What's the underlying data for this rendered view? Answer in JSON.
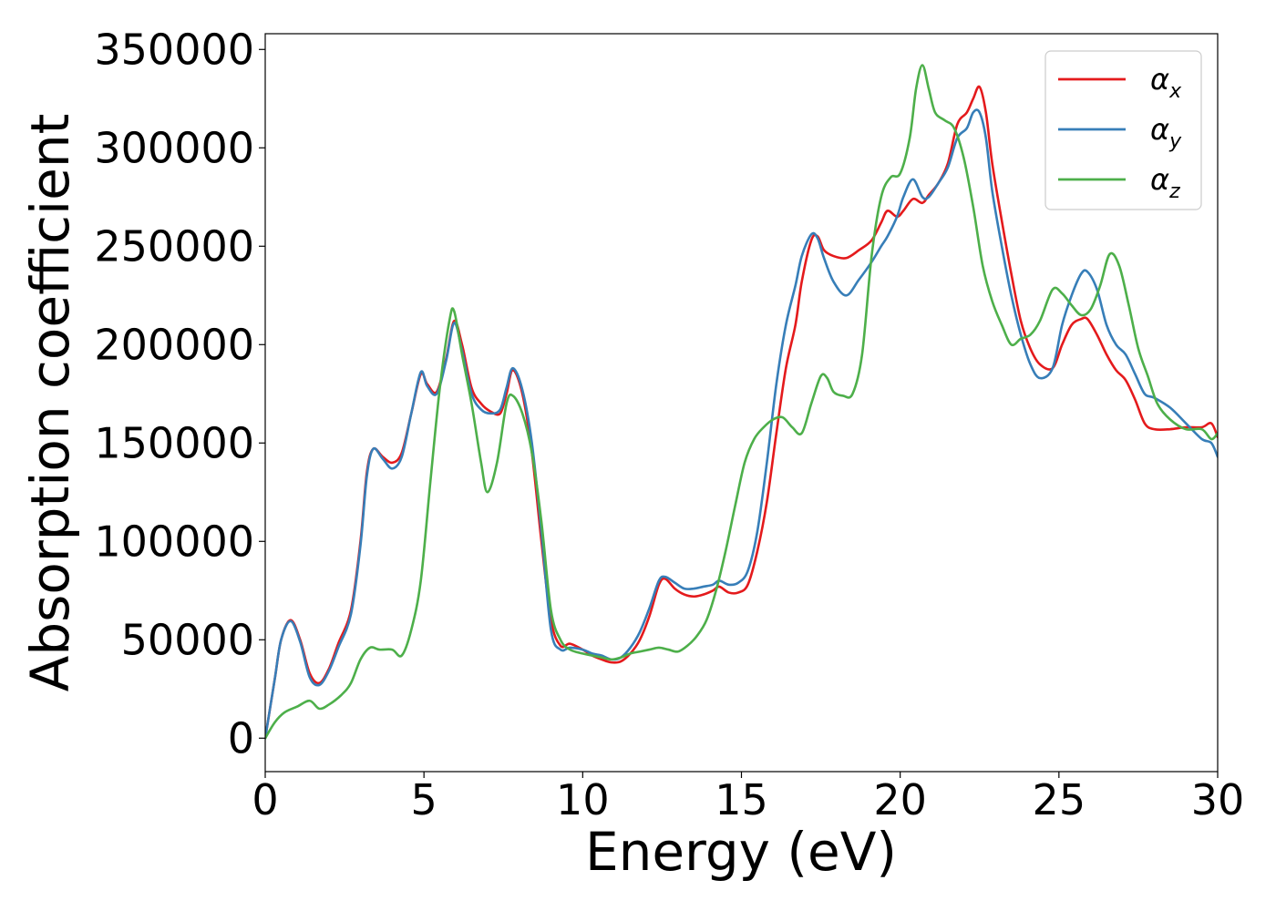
{
  "chart_data": {
    "type": "line",
    "xlabel": "Energy (eV)",
    "ylabel": "Absorption coefficient",
    "xlim": [
      0,
      30
    ],
    "ylim": [
      -17000,
      358000
    ],
    "x_ticks": [
      0,
      5,
      10,
      15,
      20,
      25,
      30
    ],
    "y_ticks": [
      0,
      50000,
      100000,
      150000,
      200000,
      250000,
      300000,
      350000
    ],
    "grid": false,
    "legend_position": "top-right",
    "series": [
      {
        "name": "αx",
        "legend_main": "α",
        "legend_sub": "x",
        "color": "#e41a1c",
        "points": [
          [
            0,
            0
          ],
          [
            0.3,
            30000
          ],
          [
            0.5,
            50000
          ],
          [
            0.8,
            60000
          ],
          [
            1.1,
            50000
          ],
          [
            1.4,
            33000
          ],
          [
            1.7,
            28000
          ],
          [
            2.0,
            35000
          ],
          [
            2.3,
            48000
          ],
          [
            2.7,
            65000
          ],
          [
            3.0,
            100000
          ],
          [
            3.2,
            135000
          ],
          [
            3.4,
            147000
          ],
          [
            3.7,
            143000
          ],
          [
            4.0,
            140000
          ],
          [
            4.3,
            145000
          ],
          [
            4.6,
            165000
          ],
          [
            4.9,
            185000
          ],
          [
            5.1,
            180000
          ],
          [
            5.4,
            176000
          ],
          [
            5.7,
            193000
          ],
          [
            5.95,
            212000
          ],
          [
            6.2,
            200000
          ],
          [
            6.5,
            178000
          ],
          [
            6.8,
            170000
          ],
          [
            7.1,
            166000
          ],
          [
            7.4,
            165000
          ],
          [
            7.6,
            175000
          ],
          [
            7.8,
            187000
          ],
          [
            8.1,
            175000
          ],
          [
            8.4,
            145000
          ],
          [
            8.7,
            100000
          ],
          [
            9.0,
            60000
          ],
          [
            9.3,
            47000
          ],
          [
            9.6,
            48000
          ],
          [
            10.0,
            45000
          ],
          [
            10.3,
            42000
          ],
          [
            10.6,
            40000
          ],
          [
            10.9,
            38500
          ],
          [
            11.2,
            39000
          ],
          [
            11.5,
            43000
          ],
          [
            11.8,
            50000
          ],
          [
            12.1,
            62000
          ],
          [
            12.4,
            78000
          ],
          [
            12.6,
            81000
          ],
          [
            12.9,
            76000
          ],
          [
            13.2,
            73000
          ],
          [
            13.5,
            72000
          ],
          [
            13.8,
            73000
          ],
          [
            14.1,
            75000
          ],
          [
            14.3,
            77000
          ],
          [
            14.6,
            74000
          ],
          [
            14.9,
            74000
          ],
          [
            15.2,
            78000
          ],
          [
            15.5,
            95000
          ],
          [
            15.8,
            120000
          ],
          [
            16.1,
            155000
          ],
          [
            16.4,
            188000
          ],
          [
            16.7,
            210000
          ],
          [
            16.9,
            232000
          ],
          [
            17.2,
            253000
          ],
          [
            17.4,
            255000
          ],
          [
            17.6,
            248000
          ],
          [
            17.9,
            245000
          ],
          [
            18.3,
            244000
          ],
          [
            18.7,
            248000
          ],
          [
            19.1,
            253000
          ],
          [
            19.4,
            262000
          ],
          [
            19.6,
            268000
          ],
          [
            19.9,
            265000
          ],
          [
            20.1,
            268000
          ],
          [
            20.4,
            274000
          ],
          [
            20.7,
            272000
          ],
          [
            20.9,
            276000
          ],
          [
            21.2,
            282000
          ],
          [
            21.5,
            292000
          ],
          [
            21.8,
            312000
          ],
          [
            22.1,
            318000
          ],
          [
            22.3,
            325000
          ],
          [
            22.5,
            331000
          ],
          [
            22.7,
            318000
          ],
          [
            22.9,
            292000
          ],
          [
            23.2,
            263000
          ],
          [
            23.5,
            236000
          ],
          [
            23.8,
            212000
          ],
          [
            24.1,
            198000
          ],
          [
            24.4,
            190000
          ],
          [
            24.8,
            188000
          ],
          [
            25.1,
            200000
          ],
          [
            25.4,
            210000
          ],
          [
            25.7,
            213000
          ],
          [
            25.9,
            213000
          ],
          [
            26.2,
            205000
          ],
          [
            26.5,
            195000
          ],
          [
            26.8,
            187000
          ],
          [
            27.1,
            182000
          ],
          [
            27.4,
            172000
          ],
          [
            27.7,
            160000
          ],
          [
            28.0,
            157000
          ],
          [
            28.5,
            157000
          ],
          [
            29.0,
            158000
          ],
          [
            29.5,
            158000
          ],
          [
            29.8,
            160000
          ],
          [
            30.0,
            153000
          ]
        ]
      },
      {
        "name": "αy",
        "legend_main": "α",
        "legend_sub": "y",
        "color": "#377eb8",
        "points": [
          [
            0,
            0
          ],
          [
            0.3,
            30000
          ],
          [
            0.5,
            50000
          ],
          [
            0.8,
            59500
          ],
          [
            1.1,
            49000
          ],
          [
            1.4,
            31000
          ],
          [
            1.7,
            27000
          ],
          [
            2.0,
            34000
          ],
          [
            2.3,
            46000
          ],
          [
            2.7,
            63000
          ],
          [
            3.0,
            98000
          ],
          [
            3.2,
            133000
          ],
          [
            3.4,
            147000
          ],
          [
            3.7,
            142000
          ],
          [
            4.0,
            137000
          ],
          [
            4.3,
            143000
          ],
          [
            4.6,
            165000
          ],
          [
            4.9,
            186000
          ],
          [
            5.1,
            179000
          ],
          [
            5.4,
            175000
          ],
          [
            5.7,
            192000
          ],
          [
            5.95,
            211000
          ],
          [
            6.2,
            197000
          ],
          [
            6.5,
            175000
          ],
          [
            6.8,
            167000
          ],
          [
            7.1,
            165000
          ],
          [
            7.4,
            167000
          ],
          [
            7.6,
            178000
          ],
          [
            7.8,
            188000
          ],
          [
            8.1,
            177000
          ],
          [
            8.4,
            150000
          ],
          [
            8.7,
            105000
          ],
          [
            9.0,
            55000
          ],
          [
            9.3,
            45000
          ],
          [
            9.6,
            46000
          ],
          [
            10.0,
            45000
          ],
          [
            10.3,
            43000
          ],
          [
            10.6,
            42000
          ],
          [
            10.9,
            40000
          ],
          [
            11.2,
            41000
          ],
          [
            11.5,
            46000
          ],
          [
            11.8,
            54000
          ],
          [
            12.1,
            66000
          ],
          [
            12.4,
            80000
          ],
          [
            12.6,
            82000
          ],
          [
            12.9,
            79000
          ],
          [
            13.2,
            76000
          ],
          [
            13.5,
            76000
          ],
          [
            13.8,
            77000
          ],
          [
            14.1,
            78000
          ],
          [
            14.3,
            80000
          ],
          [
            14.6,
            78000
          ],
          [
            14.9,
            79000
          ],
          [
            15.2,
            85000
          ],
          [
            15.5,
            105000
          ],
          [
            15.8,
            140000
          ],
          [
            16.1,
            180000
          ],
          [
            16.4,
            210000
          ],
          [
            16.7,
            230000
          ],
          [
            16.9,
            245000
          ],
          [
            17.2,
            256000
          ],
          [
            17.4,
            254000
          ],
          [
            17.6,
            244000
          ],
          [
            17.9,
            232000
          ],
          [
            18.3,
            225000
          ],
          [
            18.7,
            233000
          ],
          [
            19.1,
            242000
          ],
          [
            19.4,
            250000
          ],
          [
            19.6,
            255000
          ],
          [
            19.9,
            265000
          ],
          [
            20.1,
            275000
          ],
          [
            20.4,
            284000
          ],
          [
            20.7,
            275000
          ],
          [
            20.9,
            275000
          ],
          [
            21.2,
            282000
          ],
          [
            21.5,
            290000
          ],
          [
            21.8,
            305000
          ],
          [
            22.1,
            310000
          ],
          [
            22.3,
            318000
          ],
          [
            22.5,
            318000
          ],
          [
            22.7,
            305000
          ],
          [
            22.9,
            278000
          ],
          [
            23.2,
            250000
          ],
          [
            23.5,
            225000
          ],
          [
            23.8,
            205000
          ],
          [
            24.1,
            190000
          ],
          [
            24.4,
            183000
          ],
          [
            24.8,
            188000
          ],
          [
            25.1,
            210000
          ],
          [
            25.4,
            225000
          ],
          [
            25.7,
            236000
          ],
          [
            25.9,
            237000
          ],
          [
            26.2,
            228000
          ],
          [
            26.5,
            210000
          ],
          [
            26.8,
            200000
          ],
          [
            27.1,
            195000
          ],
          [
            27.4,
            185000
          ],
          [
            27.7,
            175000
          ],
          [
            28.0,
            173000
          ],
          [
            28.5,
            168000
          ],
          [
            29.0,
            160000
          ],
          [
            29.5,
            152000
          ],
          [
            29.8,
            150000
          ],
          [
            30.0,
            143000
          ]
        ]
      },
      {
        "name": "αz",
        "legend_main": "α",
        "legend_sub": "z",
        "color": "#4daf4a",
        "points": [
          [
            0,
            0
          ],
          [
            0.3,
            8000
          ],
          [
            0.6,
            13000
          ],
          [
            1.0,
            16000
          ],
          [
            1.4,
            19000
          ],
          [
            1.7,
            15000
          ],
          [
            2.0,
            17000
          ],
          [
            2.4,
            22000
          ],
          [
            2.7,
            28000
          ],
          [
            3.0,
            40000
          ],
          [
            3.3,
            46000
          ],
          [
            3.6,
            45000
          ],
          [
            4.0,
            45000
          ],
          [
            4.3,
            42000
          ],
          [
            4.6,
            55000
          ],
          [
            4.9,
            80000
          ],
          [
            5.2,
            130000
          ],
          [
            5.5,
            178000
          ],
          [
            5.8,
            212000
          ],
          [
            5.95,
            217000
          ],
          [
            6.2,
            195000
          ],
          [
            6.5,
            170000
          ],
          [
            6.8,
            140000
          ],
          [
            7.0,
            125000
          ],
          [
            7.3,
            140000
          ],
          [
            7.6,
            170000
          ],
          [
            7.8,
            174000
          ],
          [
            8.1,
            165000
          ],
          [
            8.4,
            145000
          ],
          [
            8.7,
            110000
          ],
          [
            9.0,
            65000
          ],
          [
            9.3,
            50000
          ],
          [
            9.6,
            45000
          ],
          [
            10.0,
            43000
          ],
          [
            10.3,
            42000
          ],
          [
            10.6,
            41000
          ],
          [
            10.9,
            40000
          ],
          [
            11.2,
            41000
          ],
          [
            11.5,
            43000
          ],
          [
            11.8,
            44000
          ],
          [
            12.1,
            45000
          ],
          [
            12.4,
            46000
          ],
          [
            12.7,
            45000
          ],
          [
            13.0,
            44000
          ],
          [
            13.3,
            47000
          ],
          [
            13.6,
            52000
          ],
          [
            13.9,
            60000
          ],
          [
            14.2,
            75000
          ],
          [
            14.5,
            95000
          ],
          [
            14.8,
            118000
          ],
          [
            15.1,
            140000
          ],
          [
            15.4,
            152000
          ],
          [
            15.7,
            158000
          ],
          [
            16.0,
            162000
          ],
          [
            16.3,
            163000
          ],
          [
            16.6,
            158000
          ],
          [
            16.9,
            155000
          ],
          [
            17.2,
            170000
          ],
          [
            17.5,
            184000
          ],
          [
            17.7,
            183000
          ],
          [
            17.9,
            176000
          ],
          [
            18.2,
            174000
          ],
          [
            18.5,
            175000
          ],
          [
            18.8,
            195000
          ],
          [
            19.1,
            245000
          ],
          [
            19.4,
            275000
          ],
          [
            19.7,
            285000
          ],
          [
            20.0,
            287000
          ],
          [
            20.3,
            305000
          ],
          [
            20.5,
            330000
          ],
          [
            20.7,
            342000
          ],
          [
            20.9,
            330000
          ],
          [
            21.1,
            318000
          ],
          [
            21.4,
            314000
          ],
          [
            21.7,
            310000
          ],
          [
            22.0,
            295000
          ],
          [
            22.3,
            270000
          ],
          [
            22.6,
            240000
          ],
          [
            22.9,
            222000
          ],
          [
            23.2,
            210000
          ],
          [
            23.5,
            200000
          ],
          [
            23.8,
            203000
          ],
          [
            24.1,
            205000
          ],
          [
            24.4,
            212000
          ],
          [
            24.8,
            228000
          ],
          [
            25.1,
            226000
          ],
          [
            25.4,
            220000
          ],
          [
            25.7,
            215000
          ],
          [
            26.0,
            218000
          ],
          [
            26.3,
            230000
          ],
          [
            26.6,
            246000
          ],
          [
            26.9,
            240000
          ],
          [
            27.2,
            220000
          ],
          [
            27.5,
            198000
          ],
          [
            27.8,
            184000
          ],
          [
            28.1,
            170000
          ],
          [
            28.5,
            162000
          ],
          [
            29.0,
            157000
          ],
          [
            29.5,
            157000
          ],
          [
            29.8,
            152000
          ],
          [
            30.0,
            155000
          ]
        ]
      }
    ]
  }
}
